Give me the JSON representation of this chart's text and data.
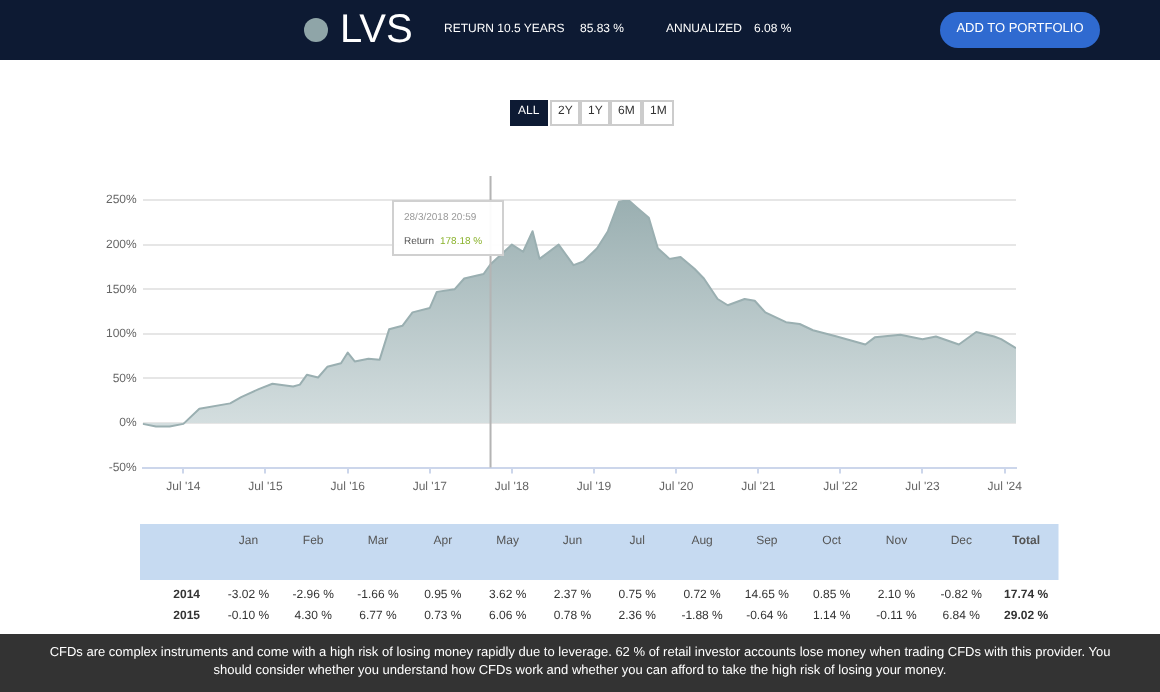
{
  "chart_data": [
    {
      "type": "area",
      "title": "LVS",
      "annotations": [
        "RETURN 10.5 YEARS",
        "85.83 %",
        "ANNUALIZED",
        "6.08 %",
        "ADD TO PORTFOLIO",
        "ALL",
        "2Y",
        "1Y",
        "6M",
        "1M",
        "28/3/2018 20:59",
        "Return",
        "178.18 %",
        "CFDs are complex instruments and come with a high risk of losing money rapidly due to leverage. 62 % of retail investor accounts lose money when trading CFDs with this provider. You should consider whether you understand how CFDs work and whether you can afford to take the high risk of losing your money."
      ],
      "x": [
        "2014-01-01",
        "2014-03-01",
        "2014-05-01",
        "2014-07-01",
        "2014-09-10",
        "2015-01-25",
        "2015-03-15",
        "2015-06-01",
        "2015-08-01",
        "2015-11-01",
        "2015-12-01",
        "2016-01-01",
        "2016-02-20",
        "2016-04-01",
        "2016-06-01",
        "2016-07-01",
        "2016-08-01",
        "2016-10-01",
        "2016-11-20",
        "2017-01-01",
        "2017-03-01",
        "2017-04-15",
        "2017-07-01",
        "2017-08-01",
        "2017-10-20",
        "2017-12-01",
        "2018-02-25",
        "2018-03-28",
        "2018-07-01",
        "2018-08-20",
        "2018-10-01",
        "2018-11-01",
        "2019-01-25",
        "2019-04-01",
        "2019-05-15",
        "2019-07-15",
        "2019-09-01",
        "2019-10-20",
        "2019-12-01",
        "2020-01-10",
        "2020-03-01",
        "2020-04-10",
        "2020-06-01",
        "2020-07-20",
        "2020-09-20",
        "2020-11-01",
        "2021-01-01",
        "2021-02-15",
        "2021-05-01",
        "2021-06-15",
        "2021-08-01",
        "2021-11-01",
        "2022-01-01",
        "2022-03-01",
        "2022-06-15",
        "2022-10-20",
        "2022-12-01",
        "2023-03-25",
        "2023-07-01",
        "2023-08-30",
        "2023-12-10",
        "2024-02-25",
        "2024-05-15",
        "2024-06-15",
        "2024-08-20"
      ],
      "series": [
        {
          "color": "#9aafb1",
          "values": [
            -1,
            -4,
            -4,
            -1,
            16,
            22,
            29,
            38,
            44,
            41,
            43,
            54,
            51,
            63,
            67,
            79,
            69,
            72,
            71,
            105,
            109,
            124,
            129,
            147,
            150,
            162,
            167,
            178,
            200,
            192,
            215,
            184,
            200,
            177,
            181,
            196,
            215,
            248,
            250,
            241,
            230,
            196,
            184,
            186,
            173,
            162,
            139,
            132,
            139,
            137,
            124,
            113,
            111,
            104,
            97,
            88,
            96,
            99,
            94,
            97,
            88,
            102,
            97,
            94,
            84
          ]
        }
      ],
      "xlim": [
        "2014-01-01",
        "2024-08-20"
      ],
      "xticks": [
        {
          "value": "2014-07-01",
          "label": "Jul '14"
        },
        {
          "value": "2015-07-01",
          "label": "Jul '15"
        },
        {
          "value": "2016-07-01",
          "label": "Jul '16"
        },
        {
          "value": "2017-07-01",
          "label": "Jul '17"
        },
        {
          "value": "2018-07-01",
          "label": "Jul '18"
        },
        {
          "value": "2019-07-01",
          "label": "Jul '19"
        },
        {
          "value": "2020-07-01",
          "label": "Jul '20"
        },
        {
          "value": "2021-07-01",
          "label": "Jul '21"
        },
        {
          "value": "2022-07-01",
          "label": "Jul '22"
        },
        {
          "value": "2023-07-01",
          "label": "Jul '23"
        },
        {
          "value": "2024-07-01",
          "label": "Jul '24"
        }
      ],
      "ylim": [
        -50,
        250
      ],
      "yticks": [
        {
          "value": -50,
          "label": "-50%"
        },
        {
          "value": 0,
          "label": "0%"
        },
        {
          "value": 50,
          "label": "50%"
        },
        {
          "value": 100,
          "label": "100%"
        },
        {
          "value": 150,
          "label": "150%"
        },
        {
          "value": 200,
          "label": "200%"
        },
        {
          "value": 250,
          "label": "250%"
        }
      ],
      "ref_lines": [
        {
          "axis": "x",
          "value": "2018-03-28",
          "color": "#b4b4b4"
        }
      ],
      "grid": "y"
    },
    {
      "type": "other",
      "categories": [
        "Jan",
        "Feb",
        "Mar",
        "Apr",
        "May",
        "Jun",
        "Jul",
        "Aug",
        "Sep",
        "Oct",
        "Nov",
        "Dec",
        "Total"
      ],
      "y_categories": [
        "2014",
        "2015"
      ],
      "annotations": [
        "-3.02 %",
        "-2.96 %",
        "-1.66 %",
        "0.95 %",
        "3.62 %",
        "2.37 %",
        "0.75 %",
        "0.72 %",
        "14.65 %",
        "0.85 %",
        "2.10 %",
        "-0.82 %",
        "17.74 %",
        "-0.10 %",
        "4.30 %",
        "6.77 %",
        "0.73 %",
        "6.06 %",
        "0.78 %",
        "2.36 %",
        "-1.88 %",
        "-0.64 %",
        "1.14 %",
        "-0.11 %",
        "6.84 %",
        "29.02 %"
      ]
    }
  ]
}
